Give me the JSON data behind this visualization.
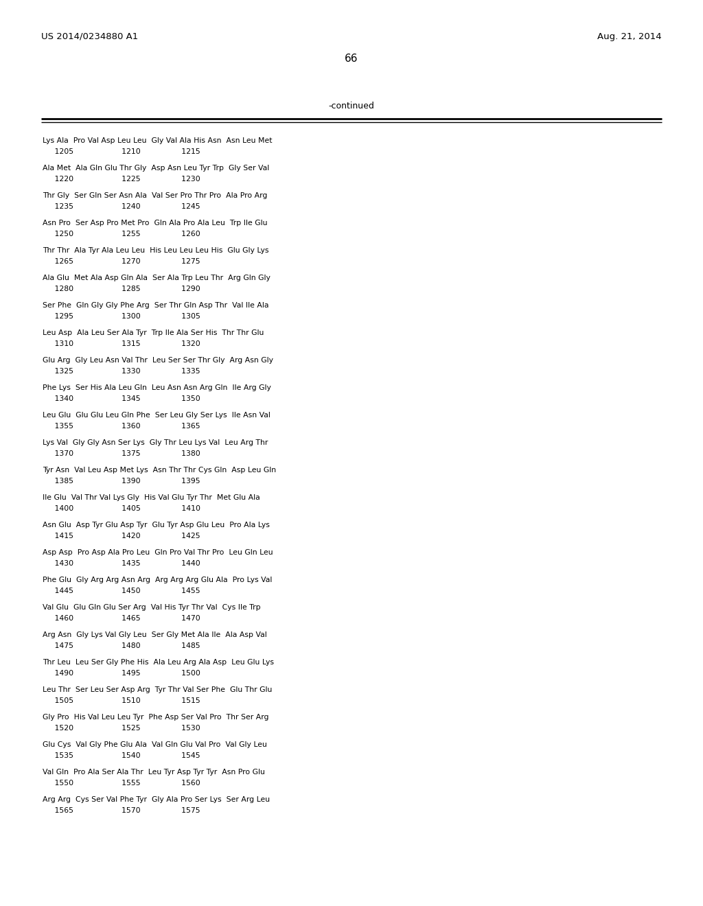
{
  "header_left": "US 2014/0234880 A1",
  "header_right": "Aug. 21, 2014",
  "page_number": "66",
  "continued_text": "-continued",
  "background_color": "#ffffff",
  "text_color": "#000000",
  "seq_lines": [
    [
      "Lys Ala  Pro Val Asp Leu Leu  Gly Val Ala His Asn  Asn Leu Met",
      "     1205                    1210                 1215"
    ],
    [
      "Ala Met  Ala Gln Glu Thr Gly  Asp Asn Leu Tyr Trp  Gly Ser Val",
      "     1220                    1225                 1230"
    ],
    [
      "Thr Gly  Ser Gln Ser Asn Ala  Val Ser Pro Thr Pro  Ala Pro Arg",
      "     1235                    1240                 1245"
    ],
    [
      "Asn Pro  Ser Asp Pro Met Pro  Gln Ala Pro Ala Leu  Trp Ile Glu",
      "     1250                    1255                 1260"
    ],
    [
      "Thr Thr  Ala Tyr Ala Leu Leu  His Leu Leu Leu His  Glu Gly Lys",
      "     1265                    1270                 1275"
    ],
    [
      "Ala Glu  Met Ala Asp Gln Ala  Ser Ala Trp Leu Thr  Arg Gln Gly",
      "     1280                    1285                 1290"
    ],
    [
      "Ser Phe  Gln Gly Gly Phe Arg  Ser Thr Gln Asp Thr  Val Ile Ala",
      "     1295                    1300                 1305"
    ],
    [
      "Leu Asp  Ala Leu Ser Ala Tyr  Trp Ile Ala Ser His  Thr Thr Glu",
      "     1310                    1315                 1320"
    ],
    [
      "Glu Arg  Gly Leu Asn Val Thr  Leu Ser Ser Thr Gly  Arg Asn Gly",
      "     1325                    1330                 1335"
    ],
    [
      "Phe Lys  Ser His Ala Leu Gln  Leu Asn Asn Arg Gln  Ile Arg Gly",
      "     1340                    1345                 1350"
    ],
    [
      "Leu Glu  Glu Glu Leu Gln Phe  Ser Leu Gly Ser Lys  Ile Asn Val",
      "     1355                    1360                 1365"
    ],
    [
      "Lys Val  Gly Gly Asn Ser Lys  Gly Thr Leu Lys Val  Leu Arg Thr",
      "     1370                    1375                 1380"
    ],
    [
      "Tyr Asn  Val Leu Asp Met Lys  Asn Thr Thr Cys Gln  Asp Leu Gln",
      "     1385                    1390                 1395"
    ],
    [
      "Ile Glu  Val Thr Val Lys Gly  His Val Glu Tyr Thr  Met Glu Ala",
      "     1400                    1405                 1410"
    ],
    [
      "Asn Glu  Asp Tyr Glu Asp Tyr  Glu Tyr Asp Glu Leu  Pro Ala Lys",
      "     1415                    1420                 1425"
    ],
    [
      "Asp Asp  Pro Asp Ala Pro Leu  Gln Pro Val Thr Pro  Leu Gln Leu",
      "     1430                    1435                 1440"
    ],
    [
      "Phe Glu  Gly Arg Arg Asn Arg  Arg Arg Arg Glu Ala  Pro Lys Val",
      "     1445                    1450                 1455"
    ],
    [
      "Val Glu  Glu Gln Glu Ser Arg  Val His Tyr Thr Val  Cys Ile Trp",
      "     1460                    1465                 1470"
    ],
    [
      "Arg Asn  Gly Lys Val Gly Leu  Ser Gly Met Ala Ile  Ala Asp Val",
      "     1475                    1480                 1485"
    ],
    [
      "Thr Leu  Leu Ser Gly Phe His  Ala Leu Arg Ala Asp  Leu Glu Lys",
      "     1490                    1495                 1500"
    ],
    [
      "Leu Thr  Ser Leu Ser Asp Arg  Tyr Thr Val Ser Phe  Glu Thr Glu",
      "     1505                    1510                 1515"
    ],
    [
      "Gly Pro  His Val Leu Leu Tyr  Phe Asp Ser Val Pro  Thr Ser Arg",
      "     1520                    1525                 1530"
    ],
    [
      "Glu Cys  Val Gly Phe Glu Ala  Val Gln Glu Val Pro  Val Gly Leu",
      "     1535                    1540                 1545"
    ],
    [
      "Val Gln  Pro Ala Ser Ala Thr  Leu Tyr Asp Tyr Tyr  Asn Pro Glu",
      "     1550                    1555                 1560"
    ],
    [
      "Arg Arg  Cys Ser Val Phe Tyr  Gly Ala Pro Ser Lys  Ser Arg Leu",
      "     1565                    1570                 1575"
    ]
  ]
}
